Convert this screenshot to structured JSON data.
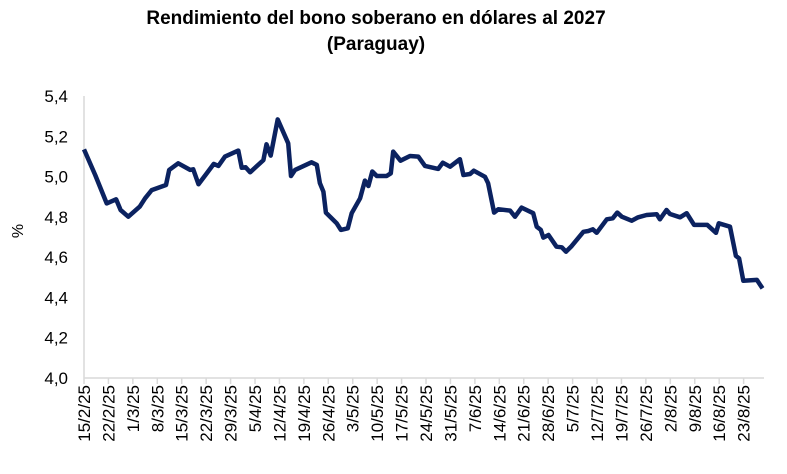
{
  "chart_data": {
    "type": "line",
    "title": [
      "Rendimiento del bono soberano en dólares al 2027",
      "(Paraguay)"
    ],
    "xlabel": "",
    "ylabel": "%",
    "ylim": [
      4.0,
      5.4
    ],
    "yticks": [
      4.0,
      4.2,
      4.4,
      4.6,
      4.8,
      5.0,
      5.2,
      5.4
    ],
    "ytick_labels": [
      "4,0",
      "4,2",
      "4,4",
      "4,6",
      "4,8",
      "5,0",
      "5,2",
      "5,4"
    ],
    "xtick_labels": [
      "15/2/25",
      "22/2/25",
      "1/3/25",
      "8/3/25",
      "15/3/25",
      "22/3/25",
      "29/3/25",
      "5/4/25",
      "12/4/25",
      "19/4/25",
      "26/4/25",
      "3/5/25",
      "10/5/25",
      "17/5/25",
      "24/5/25",
      "31/5/25",
      "7/6/25",
      "14/6/25",
      "21/6/25",
      "28/6/25",
      "5/7/25",
      "12/7/25",
      "19/7/25",
      "26/7/25",
      "2/8/25",
      "9/8/25",
      "16/8/25",
      "23/8/25"
    ],
    "xtick_step_days": 7,
    "grid": false,
    "series": [
      {
        "name": "Rendimiento",
        "color": "#0b2260",
        "x_days": [
          0,
          3.2,
          6.5,
          9.2,
          10.5,
          12.7,
          16,
          17.5,
          19.4,
          23.5,
          24.4,
          27,
          30.4,
          31.3,
          32.8,
          35.2,
          37.2,
          38.5,
          40.4,
          44.2,
          45.2,
          46.3,
          47.6,
          51.4,
          52.3,
          53.5,
          55.5,
          58.5,
          59.3,
          60.5,
          65.2,
          66.7,
          67.6,
          68.6,
          69.3,
          72.4,
          73.6,
          75.6,
          76.7,
          79.1,
          80.5,
          81.5,
          82.6,
          83.9,
          86.7,
          87.9,
          88.6,
          90.7,
          93.4,
          95.8,
          97.7,
          101.5,
          102.8,
          104.9,
          107.7,
          108.7,
          110.6,
          111.7,
          114.9,
          115.8,
          117.5,
          118.7,
          122.1,
          123.5,
          125.4,
          128.7,
          129.7,
          130.9,
          131.6,
          133.1,
          135.4,
          136.9,
          138.1,
          139.7,
          143.1,
          144.5,
          145.8,
          146.9,
          149.8,
          151.5,
          152.8,
          154.1,
          156.9,
          158.8,
          161.2,
          164.1,
          165,
          166.9,
          167.9,
          170.8,
          172.7,
          174.8,
          178.6,
          181.1,
          181.9,
          185.1,
          186.8,
          187.7,
          188.9,
          192.8,
          194.4
        ],
        "values": [
          5.135,
          5.008,
          4.867,
          4.887,
          4.834,
          4.801,
          4.851,
          4.892,
          4.933,
          4.958,
          5.033,
          5.066,
          5.033,
          5.036,
          4.962,
          5.016,
          5.063,
          5.053,
          5.099,
          5.129,
          5.044,
          5.046,
          5.021,
          5.082,
          5.16,
          5.104,
          5.284,
          5.165,
          5.003,
          5.033,
          5.071,
          5.058,
          4.967,
          4.925,
          4.821,
          4.768,
          4.735,
          4.743,
          4.818,
          4.892,
          4.98,
          4.953,
          5.025,
          5.003,
          5.003,
          5.016,
          5.124,
          5.079,
          5.102,
          5.099,
          5.053,
          5.038,
          5.069,
          5.049,
          5.086,
          5.008,
          5.013,
          5.029,
          4.999,
          4.967,
          4.821,
          4.838,
          4.831,
          4.801,
          4.846,
          4.818,
          4.751,
          4.735,
          4.697,
          4.71,
          4.652,
          4.649,
          4.627,
          4.655,
          4.726,
          4.73,
          4.738,
          4.721,
          4.788,
          4.793,
          4.821,
          4.801,
          4.781,
          4.798,
          4.809,
          4.813,
          4.788,
          4.834,
          4.814,
          4.798,
          4.818,
          4.76,
          4.76,
          4.721,
          4.768,
          4.751,
          4.606,
          4.594,
          4.483,
          4.487,
          4.445
        ]
      }
    ]
  }
}
